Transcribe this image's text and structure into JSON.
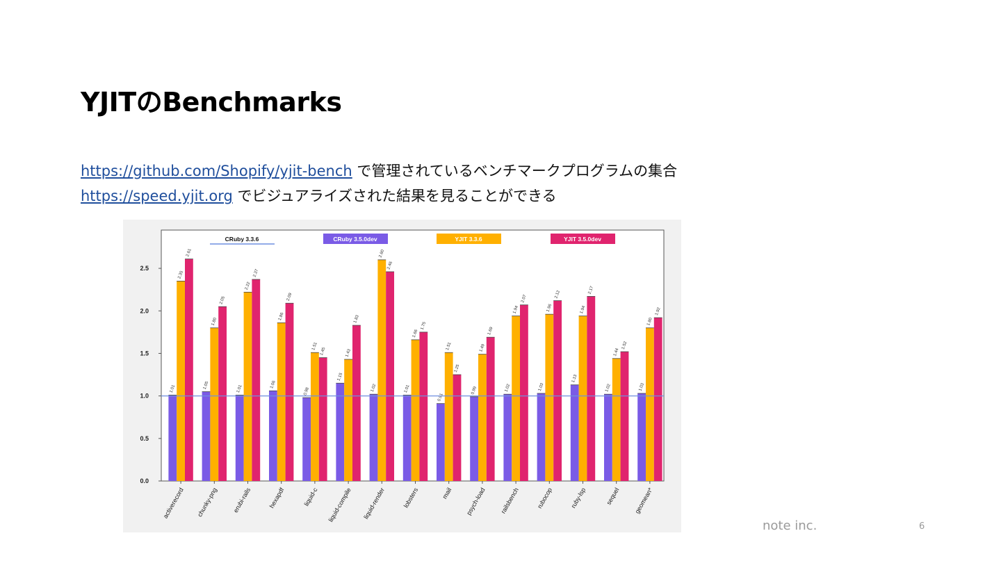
{
  "slide": {
    "title": "YJITのBenchmarks",
    "line1_link": "https://github.com/Shopify/yjit-bench",
    "line1_text": " で管理されているベンチマークプログラムの集合",
    "line2_link": "https://speed.yjit.org",
    "line2_text": " でビジュアライズされた結果を見ることができる",
    "company": "note inc.",
    "page_number": "6",
    "link_color": "#1f4e9c"
  },
  "chart_data": {
    "type": "bar",
    "categories": [
      "activerecord",
      "chunky-png",
      "erubi-rails",
      "hexapdf",
      "liquid-c",
      "liquid-compile",
      "liquid-render",
      "lobsters",
      "mail",
      "psych-load",
      "railsbench",
      "rubocop",
      "ruby-lsp",
      "sequel",
      "geomean*"
    ],
    "series": [
      {
        "name": "CRuby 3.3.6",
        "color": "#6f8fe0",
        "values": [
          1,
          1,
          1,
          1,
          1,
          1,
          1,
          1,
          1,
          1,
          1,
          1,
          1,
          1,
          1
        ],
        "style": "baseline"
      },
      {
        "name": "CRuby 3.5.0dev",
        "color": "#7a5be6",
        "values": [
          1.01,
          1.05,
          1.01,
          1.06,
          0.98,
          1.15,
          1.02,
          1.01,
          0.91,
          0.99,
          1.02,
          1.03,
          1.13,
          1.02,
          1.03
        ],
        "labels": [
          "1.01",
          "1.05",
          "1.01",
          "1.06",
          "0.98",
          "1.15",
          "1.02",
          "1.01",
          "0.91",
          "0.99",
          "1.02",
          "1.03",
          "1.13",
          "1.02",
          "1.03"
        ]
      },
      {
        "name": "YJIT 3.3.6",
        "color": "#ffb000",
        "values": [
          2.35,
          1.8,
          2.22,
          1.86,
          1.51,
          1.43,
          2.6,
          1.66,
          1.51,
          1.49,
          1.94,
          1.96,
          1.94,
          1.44,
          1.8
        ],
        "labels": [
          "2.35",
          "1.80",
          "2.22",
          "1.86",
          "1.51",
          "1.43",
          "2.60",
          "1.66",
          "1.51",
          "1.49",
          "1.94",
          "1.96",
          "1.94",
          "1.44",
          "1.80"
        ]
      },
      {
        "name": "YJIT 3.5.0dev",
        "color": "#e0246e",
        "values": [
          2.61,
          2.05,
          2.37,
          2.09,
          1.45,
          1.83,
          2.46,
          1.75,
          1.25,
          1.69,
          2.07,
          2.12,
          2.17,
          1.52,
          1.92
        ],
        "labels": [
          "2.61",
          "2.05",
          "2.37",
          "2.09",
          "1.45",
          "1.83",
          "2.46",
          "1.75",
          "1.25",
          "1.69",
          "2.07",
          "2.12",
          "2.17",
          "1.52",
          "1.92"
        ]
      }
    ],
    "yticks": [
      "0.0",
      "0.5",
      "1.0",
      "1.5",
      "2.0",
      "2.5"
    ],
    "ylim": [
      0,
      2.95
    ],
    "title": "",
    "xlabel": "",
    "ylabel": "",
    "legend_position": "top",
    "grid": false
  }
}
